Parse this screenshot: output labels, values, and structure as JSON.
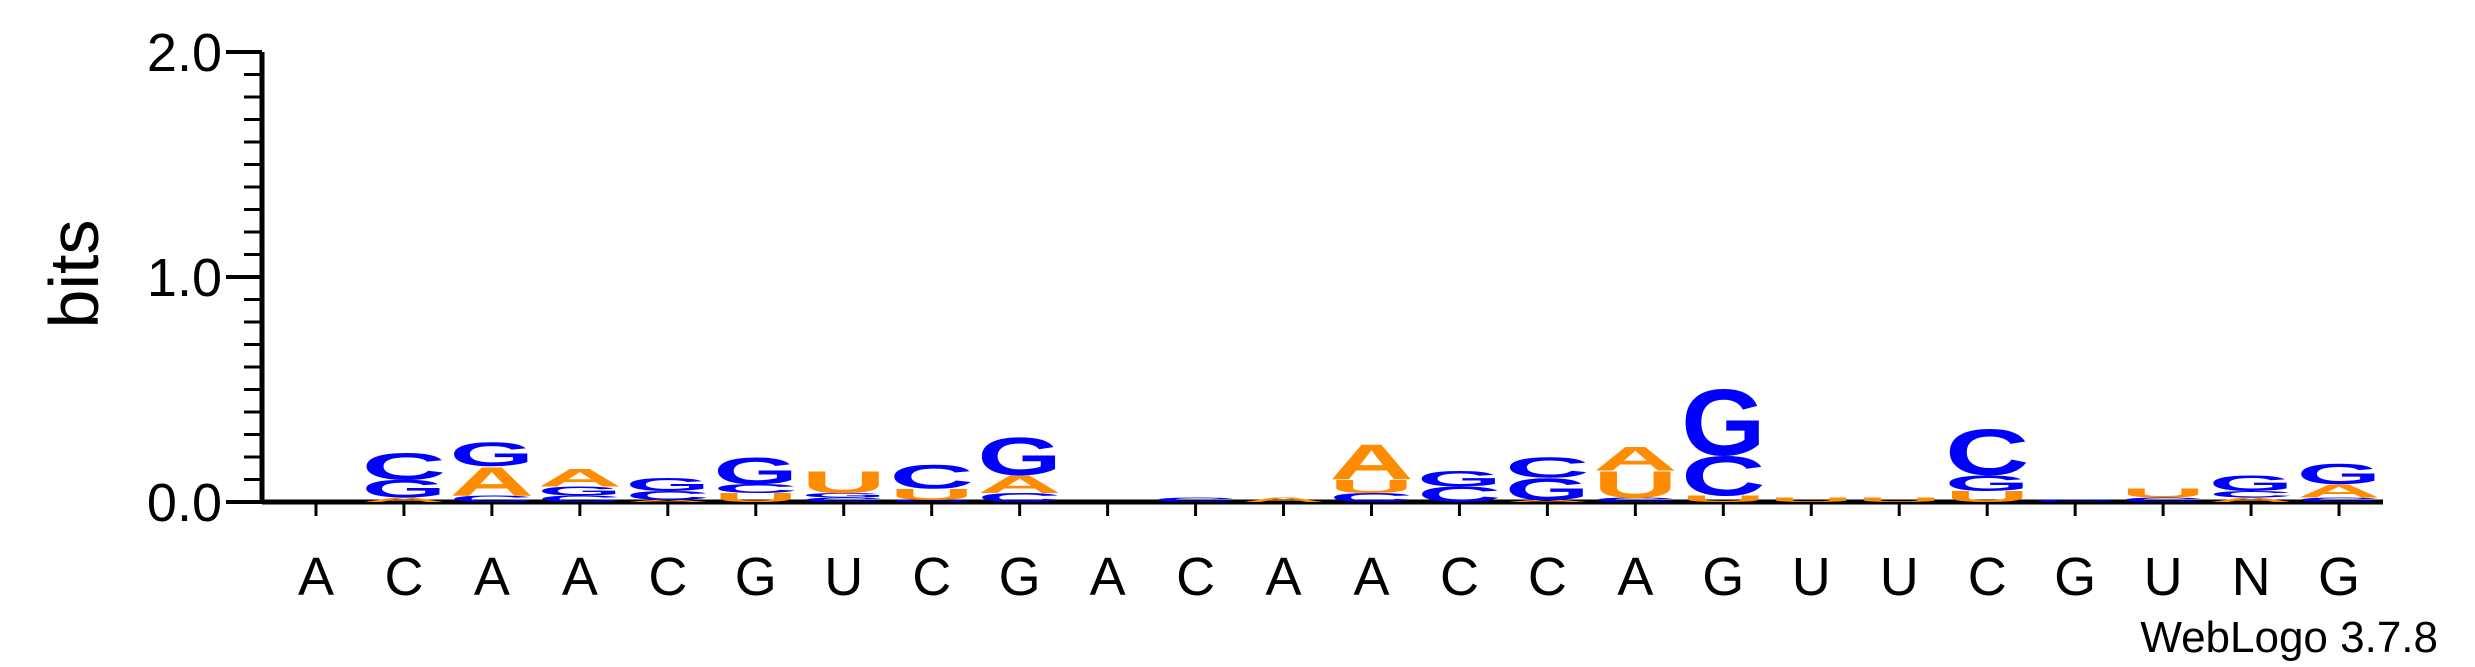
{
  "chart_data": {
    "type": "sequence-logo",
    "ylabel": "bits",
    "ylim": [
      0,
      2.0
    ],
    "yticks": [
      {
        "value": 0,
        "label": "0.0"
      },
      {
        "value": 1,
        "label": "1.0"
      },
      {
        "value": 2,
        "label": "2.0"
      }
    ],
    "xlabels": [
      "A",
      "C",
      "A",
      "A",
      "C",
      "G",
      "U",
      "C",
      "G",
      "A",
      "C",
      "A",
      "A",
      "C",
      "C",
      "A",
      "G",
      "U",
      "U",
      "C",
      "G",
      "U",
      "N",
      "G"
    ],
    "colors": {
      "A": "#FF8C00",
      "U": "#FF8C00",
      "C": "#0000FF",
      "G": "#0000FF"
    },
    "positions": [
      {
        "stack": []
      },
      {
        "stack": [
          {
            "l": "A",
            "h": 0.02
          },
          {
            "l": "G",
            "h": 0.08
          },
          {
            "l": "C",
            "h": 0.12
          }
        ]
      },
      {
        "stack": [
          {
            "l": "C",
            "h": 0.03
          },
          {
            "l": "A",
            "h": 0.13
          },
          {
            "l": "G",
            "h": 0.11
          }
        ]
      },
      {
        "stack": [
          {
            "l": "C",
            "h": 0.03
          },
          {
            "l": "G",
            "h": 0.04
          },
          {
            "l": "A",
            "h": 0.08
          }
        ]
      },
      {
        "stack": [
          {
            "l": "A",
            "h": 0.01
          },
          {
            "l": "C",
            "h": 0.04
          },
          {
            "l": "G",
            "h": 0.06
          }
        ]
      },
      {
        "stack": [
          {
            "l": "U",
            "h": 0.04
          },
          {
            "l": "C",
            "h": 0.04
          },
          {
            "l": "G",
            "h": 0.12
          }
        ]
      },
      {
        "stack": [
          {
            "l": "C",
            "h": 0.02
          },
          {
            "l": "G",
            "h": 0.02
          },
          {
            "l": "U",
            "h": 0.1
          }
        ]
      },
      {
        "stack": [
          {
            "l": "G",
            "h": 0.01
          },
          {
            "l": "U",
            "h": 0.05
          },
          {
            "l": "C",
            "h": 0.11
          }
        ]
      },
      {
        "stack": [
          {
            "l": "C",
            "h": 0.04
          },
          {
            "l": "A",
            "h": 0.08
          },
          {
            "l": "G",
            "h": 0.17
          }
        ]
      },
      {
        "stack": []
      },
      {
        "stack": [
          {
            "l": "C",
            "h": 0.02
          }
        ]
      },
      {
        "stack": [
          {
            "l": "A",
            "h": 0.02
          }
        ]
      },
      {
        "stack": [
          {
            "l": "C",
            "h": 0.04
          },
          {
            "l": "U",
            "h": 0.06
          },
          {
            "l": "A",
            "h": 0.16
          }
        ]
      },
      {
        "stack": [
          {
            "l": "C",
            "h": 0.07
          },
          {
            "l": "G",
            "h": 0.07
          }
        ]
      },
      {
        "stack": [
          {
            "l": "A",
            "h": 0.01
          },
          {
            "l": "G",
            "h": 0.1
          },
          {
            "l": "C",
            "h": 0.09
          }
        ]
      },
      {
        "stack": [
          {
            "l": "C",
            "h": 0.02
          },
          {
            "l": "U",
            "h": 0.12
          },
          {
            "l": "A",
            "h": 0.11
          }
        ]
      },
      {
        "stack": [
          {
            "l": "U",
            "h": 0.03
          },
          {
            "l": "C",
            "h": 0.18
          },
          {
            "l": "G",
            "h": 0.3
          }
        ]
      },
      {
        "stack": [
          {
            "l": "U",
            "h": 0.02
          }
        ]
      },
      {
        "stack": [
          {
            "l": "U",
            "h": 0.02
          }
        ]
      },
      {
        "stack": [
          {
            "l": "U",
            "h": 0.05
          },
          {
            "l": "G",
            "h": 0.07
          },
          {
            "l": "C",
            "h": 0.21
          }
        ]
      },
      {
        "stack": [
          {
            "l": "C",
            "h": 0.01
          }
        ]
      },
      {
        "stack": [
          {
            "l": "C",
            "h": 0.02
          },
          {
            "l": "U",
            "h": 0.04
          }
        ]
      },
      {
        "stack": [
          {
            "l": "A",
            "h": 0.02
          },
          {
            "l": "C",
            "h": 0.03
          },
          {
            "l": "G",
            "h": 0.07
          }
        ]
      },
      {
        "stack": [
          {
            "l": "C",
            "h": 0.02
          },
          {
            "l": "A",
            "h": 0.06
          },
          {
            "l": "G",
            "h": 0.09
          }
        ]
      }
    ]
  },
  "footer": {
    "credit": "WebLogo 3.7.8"
  }
}
